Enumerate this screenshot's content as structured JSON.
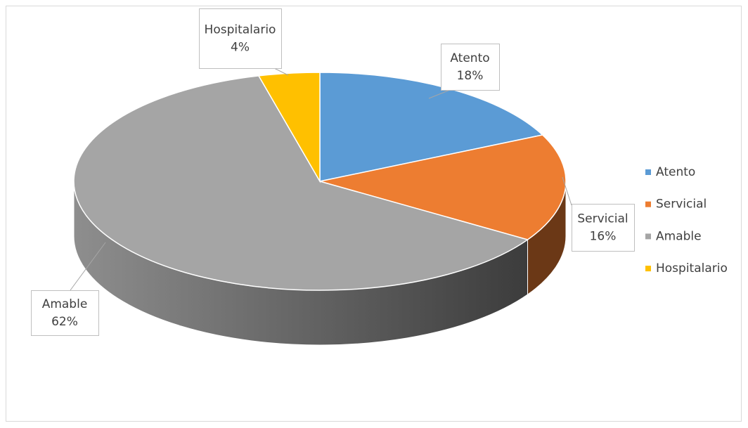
{
  "chart_data": {
    "type": "pie",
    "categories": [
      "Atento",
      "Servicial",
      "Amable",
      "Hospitalario"
    ],
    "values": [
      18,
      16,
      62,
      4
    ],
    "value_labels": [
      "18%",
      "16%",
      "62%",
      "4%"
    ],
    "colors": [
      "#5b9bd5",
      "#ed7d31",
      "#a5a5a5",
      "#ffc000"
    ],
    "legend": "right"
  }
}
